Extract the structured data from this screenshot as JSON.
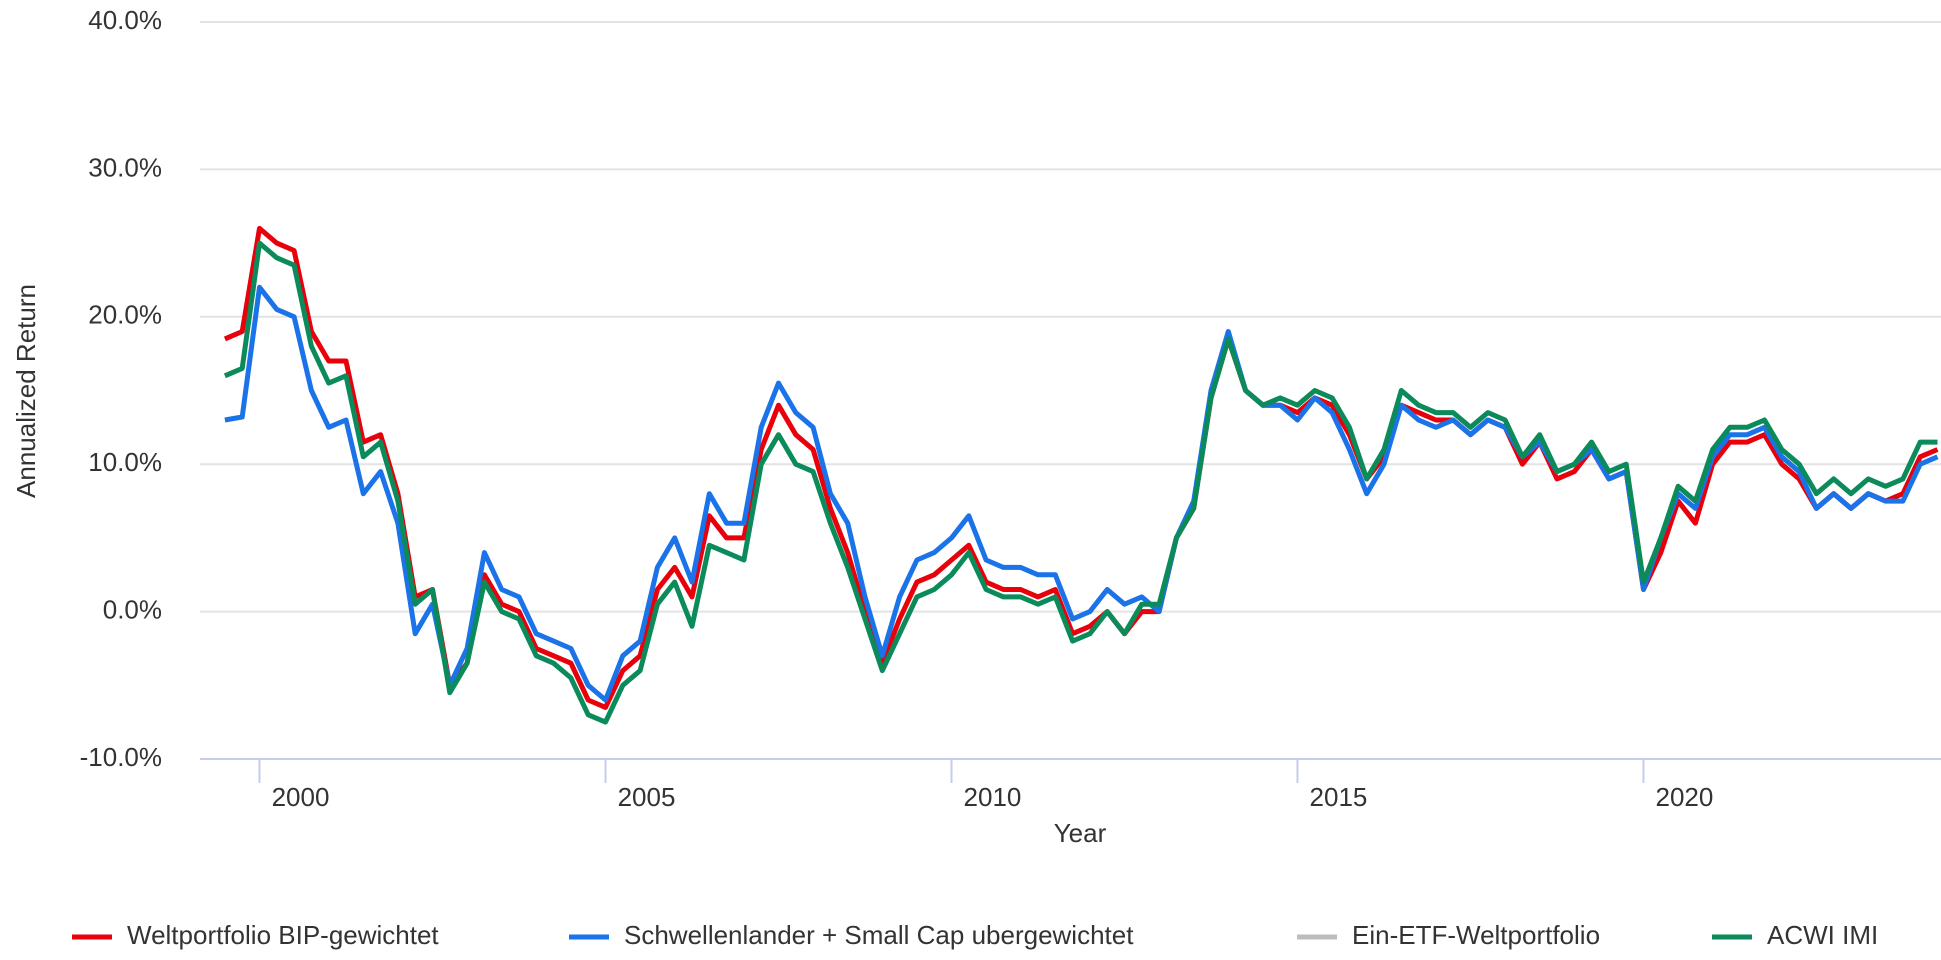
{
  "chart_data": {
    "type": "line",
    "x_label": "Year",
    "y_label": "Annualized Return",
    "xlim": [
      1999.14,
      2024.3
    ],
    "xticks": [
      2000,
      2005,
      2010,
      2015,
      2020
    ],
    "ylim": [
      -10,
      40
    ],
    "yticks": [
      {
        "value": -10,
        "label": "-10.0%"
      },
      {
        "value": 0,
        "label": "0.0%"
      },
      {
        "value": 10,
        "label": "10.0%"
      },
      {
        "value": 20,
        "label": "20.0%"
      },
      {
        "value": 30,
        "label": "30.0%"
      },
      {
        "value": 40,
        "label": "40.0%"
      }
    ],
    "grid": true,
    "legend": "bottom",
    "x": [
      1999.5,
      1999.75,
      2000,
      2000.25,
      2000.5,
      2000.75,
      2001,
      2001.25,
      2001.5,
      2001.75,
      2002,
      2002.25,
      2002.5,
      2002.75,
      2003,
      2003.25,
      2003.5,
      2003.75,
      2004,
      2004.25,
      2004.5,
      2004.75,
      2005,
      2005.25,
      2005.5,
      2005.75,
      2006,
      2006.25,
      2006.5,
      2006.75,
      2007,
      2007.25,
      2007.5,
      2007.75,
      2008,
      2008.25,
      2008.5,
      2008.75,
      2009,
      2009.25,
      2009.5,
      2009.75,
      2010,
      2010.25,
      2010.5,
      2010.75,
      2011,
      2011.25,
      2011.5,
      2011.75,
      2012,
      2012.25,
      2012.5,
      2012.75,
      2013,
      2013.25,
      2013.5,
      2013.75,
      2014,
      2014.25,
      2014.5,
      2014.75,
      2015,
      2015.25,
      2015.5,
      2015.75,
      2016,
      2016.25,
      2016.5,
      2016.75,
      2017,
      2017.25,
      2017.5,
      2017.75,
      2018,
      2018.25,
      2018.5,
      2018.75,
      2019,
      2019.25,
      2019.5,
      2019.75,
      2020,
      2020.25,
      2020.5,
      2020.75,
      2021,
      2021.25,
      2021.5,
      2021.75,
      2022,
      2022.25,
      2022.5,
      2022.75,
      2023,
      2023.25,
      2023.5,
      2023.75,
      2024,
      2024.25
    ],
    "series": [
      {
        "name": "Weltportfolio BIP-gewichtet",
        "color": "#e8000b",
        "values": [
          18.5,
          19,
          26,
          25,
          24.5,
          19,
          17,
          17,
          11.5,
          12,
          8,
          1,
          1.5,
          -5,
          -3.5,
          2.5,
          0.5,
          0,
          -2.5,
          -3,
          -3.5,
          -6,
          -6.5,
          -4,
          -3,
          1.5,
          3,
          1,
          6.5,
          5,
          5,
          11,
          14,
          12,
          11,
          7,
          4,
          0,
          -3.5,
          -0.5,
          2,
          2.5,
          3.5,
          4.5,
          2,
          1.5,
          1.5,
          1,
          1.5,
          -1.5,
          -1,
          0,
          -1.5,
          0,
          0,
          5,
          7,
          14.5,
          18.5,
          15,
          14,
          14,
          13.5,
          14.5,
          14,
          12,
          9,
          10.5,
          14,
          13.5,
          13,
          13,
          12,
          13,
          12.5,
          10,
          11.5,
          9,
          9.5,
          11,
          9,
          9.5,
          1.5,
          4,
          7.5,
          6,
          10,
          11.5,
          11.5,
          12,
          10,
          9,
          7,
          8,
          7,
          8,
          7.5,
          8,
          10.5,
          11
        ]
      },
      {
        "name": "Schwellenlander + Small Cap ubergewichtet",
        "color": "#1a73e8",
        "values": [
          13,
          13.2,
          22,
          20.5,
          20,
          15,
          12.5,
          13,
          8,
          9.5,
          6,
          -1.5,
          0.5,
          -5,
          -2.5,
          4,
          1.5,
          1,
          -1.5,
          -2,
          -2.5,
          -5,
          -6,
          -3,
          -2,
          3,
          5,
          2,
          8,
          6,
          6,
          12.5,
          15.5,
          13.5,
          12.5,
          8,
          6,
          1,
          -3,
          1,
          3.5,
          4,
          5,
          6.5,
          3.5,
          3,
          3,
          2.5,
          2.5,
          -0.5,
          0,
          1.5,
          0.5,
          1,
          0,
          5,
          7.5,
          15,
          19,
          15,
          14,
          14,
          13,
          14.5,
          13.5,
          11,
          8,
          10,
          14,
          13,
          12.5,
          13,
          12,
          13,
          12.5,
          10.5,
          11.5,
          9.5,
          10,
          11,
          9,
          9.5,
          1.5,
          5,
          8,
          7,
          10.5,
          12,
          12,
          12.5,
          10.5,
          9.5,
          7,
          8,
          7,
          8,
          7.5,
          7.5,
          10,
          10.5
        ]
      },
      {
        "name": "Ein-ETF-Weltportfolio",
        "color": "#bdbdbd",
        "hidden": true
      },
      {
        "name": "ACWI IMI",
        "color": "#0b8a5a",
        "values": [
          16,
          16.5,
          25,
          24,
          23.5,
          18,
          15.5,
          16,
          10.5,
          11.5,
          7.5,
          0.5,
          1.5,
          -5.5,
          -3.5,
          2,
          0,
          -0.5,
          -3,
          -3.5,
          -4.5,
          -7,
          -7.5,
          -5,
          -4,
          0.5,
          2,
          -1,
          4.5,
          4,
          3.5,
          10,
          12,
          10,
          9.5,
          6,
          3,
          -0.5,
          -4,
          -1.5,
          1,
          1.5,
          2.5,
          4,
          1.5,
          1,
          1,
          0.5,
          1,
          -2,
          -1.5,
          0,
          -1.5,
          0.5,
          0.5,
          5,
          7,
          14.5,
          18.5,
          15,
          14,
          14.5,
          14,
          15,
          14.5,
          12.5,
          9,
          11,
          15,
          14,
          13.5,
          13.5,
          12.5,
          13.5,
          13,
          10.5,
          12,
          9.5,
          10,
          11.5,
          9.5,
          10,
          2,
          5,
          8.5,
          7.5,
          11,
          12.5,
          12.5,
          13,
          11,
          10,
          8,
          9,
          8,
          9,
          8.5,
          9,
          11.5,
          11.5
        ]
      }
    ]
  }
}
